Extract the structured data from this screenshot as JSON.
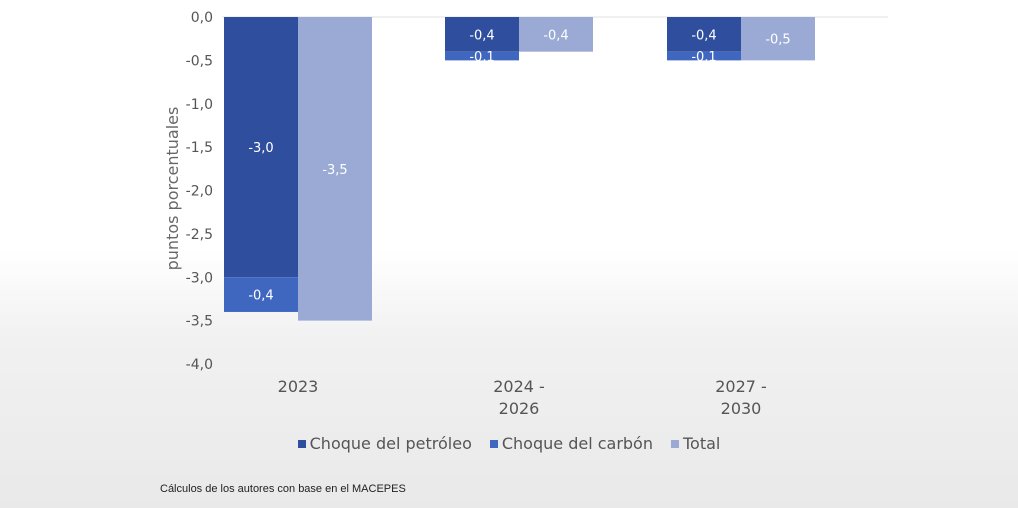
{
  "chart_data": {
    "type": "bar",
    "ylabel": "puntos porcentuales",
    "ylim": [
      -4.0,
      0.0
    ],
    "yticks": [
      "0,0",
      "-0,5",
      "-1,0",
      "-1,5",
      "-2,0",
      "-2,5",
      "-3,0",
      "-3,5",
      "-4,0"
    ],
    "categories": [
      [
        "2023"
      ],
      [
        "2024 -",
        "2026"
      ],
      [
        "2027 -",
        "2030"
      ]
    ],
    "stacked_series": [
      {
        "name": "Choque del petróleo",
        "color": "#2f4f9e",
        "values": [
          -3.0,
          -0.4,
          -0.4
        ],
        "labels": [
          "-3,0",
          "-0,4",
          "-0,4"
        ]
      },
      {
        "name": "Choque del carbón",
        "color": "#3f67c0",
        "values": [
          -0.4,
          -0.1,
          -0.1
        ],
        "labels": [
          "-0,4",
          "-0,1",
          "-0,1"
        ]
      }
    ],
    "total_series": {
      "name": "Total",
      "color": "#9aaad4",
      "values": [
        -3.5,
        -0.4,
        -0.5
      ],
      "labels": [
        "-3,5",
        "-0,4",
        "-0,5"
      ]
    },
    "grid": false,
    "legend": "bottom"
  },
  "source_note": "Cálculos de los autores con base en el MACEPES"
}
